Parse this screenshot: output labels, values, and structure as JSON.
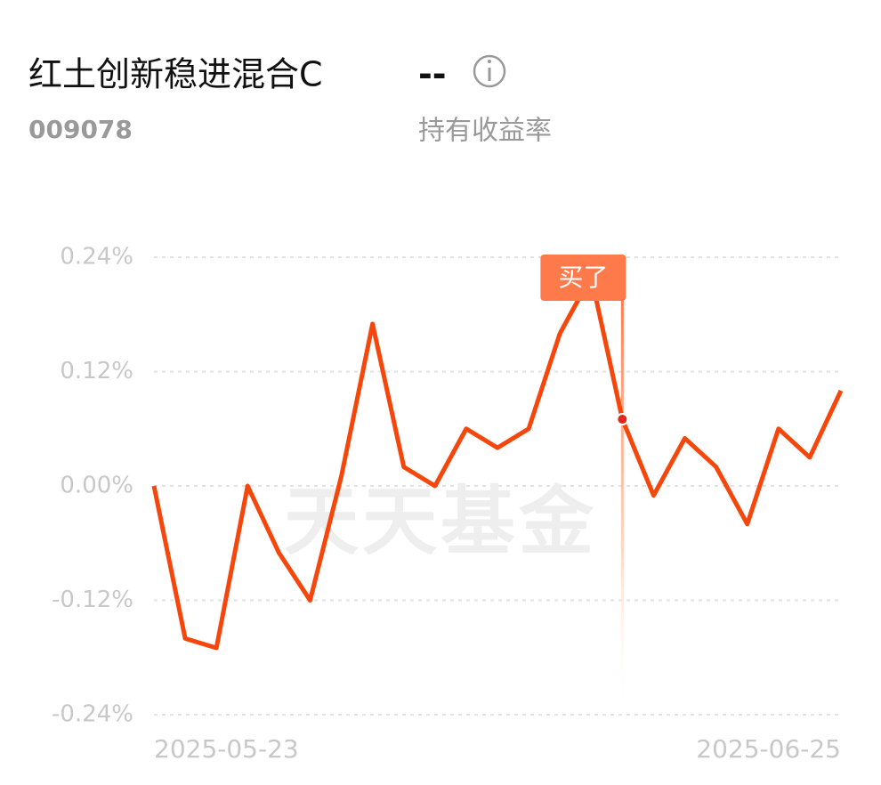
{
  "header": {
    "title": "红土创新稳进混合C",
    "value": "--",
    "code": "009078",
    "metric": "持有收益率"
  },
  "chart_data": {
    "type": "line",
    "categories": [
      "2025-05-23",
      null,
      null,
      null,
      null,
      null,
      null,
      null,
      null,
      null,
      null,
      null,
      null,
      null,
      null,
      null,
      null,
      null,
      null,
      null,
      null,
      null,
      "2025-06-25"
    ],
    "values": [
      0.0,
      -0.16,
      -0.17,
      0.0,
      -0.07,
      -0.12,
      0.01,
      0.17,
      0.02,
      0.0,
      0.06,
      0.04,
      0.06,
      0.16,
      0.22,
      0.07,
      -0.01,
      0.05,
      0.02,
      -0.04,
      0.06,
      0.03,
      0.1
    ],
    "color": "#f5460c",
    "ylim": [
      -0.24,
      0.24
    ],
    "yticks": [
      {
        "value": 0.24,
        "label": "0.24%"
      },
      {
        "value": 0.12,
        "label": "0.12%"
      },
      {
        "value": 0,
        "label": "0.00%"
      },
      {
        "value": -0.12,
        "label": "-0.12%"
      },
      {
        "value": -0.24,
        "label": "-0.24%"
      }
    ],
    "grid": true,
    "annotation": "买了",
    "watermark": "天天基金"
  }
}
